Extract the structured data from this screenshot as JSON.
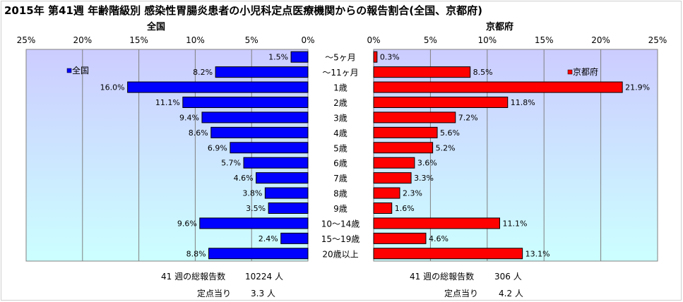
{
  "title": "2015年 第41週 年齢階級別 感染性胃腸炎患者の小児科定点医療機関からの報告割合(全国、京都府)",
  "chart_data": [
    {
      "type": "bar",
      "subtitle": "全国",
      "legend": "全国",
      "legend_position": "top-left",
      "orientation": "horizontal",
      "x_direction": "reversed",
      "xlim": [
        0,
        25
      ],
      "xticks": [
        "25%",
        "20%",
        "15%",
        "10%",
        "5%",
        "0%"
      ],
      "grid": true,
      "color": "#0000ff",
      "categories": [
        "～5ヶ月",
        "～11ヶ月",
        "1歳",
        "2歳",
        "3歳",
        "4歳",
        "5歳",
        "6歳",
        "7歳",
        "8歳",
        "9歳",
        "10～14歳",
        "15～19歳",
        "20歳以上"
      ],
      "values": [
        1.5,
        8.2,
        16.0,
        11.1,
        9.4,
        8.6,
        6.9,
        5.7,
        4.6,
        3.8,
        3.5,
        9.6,
        2.4,
        8.8
      ],
      "labels": [
        "1.5%",
        "8.2%",
        "16.0%",
        "11.1%",
        "9.4%",
        "8.6%",
        "6.9%",
        "5.7%",
        "4.6%",
        "3.8%",
        "3.5%",
        "9.6%",
        "2.4%",
        "8.8%"
      ]
    },
    {
      "type": "bar",
      "subtitle": "京都府",
      "legend": "京都府",
      "legend_position": "top-right",
      "orientation": "horizontal",
      "xlim": [
        0,
        25
      ],
      "xticks": [
        "0%",
        "5%",
        "10%",
        "15%",
        "20%",
        "25%"
      ],
      "grid": true,
      "color": "#ff0000",
      "categories": [
        "～5ヶ月",
        "～11ヶ月",
        "1歳",
        "2歳",
        "3歳",
        "4歳",
        "5歳",
        "6歳",
        "7歳",
        "8歳",
        "9歳",
        "10～14歳",
        "15～19歳",
        "20歳以上"
      ],
      "values": [
        0.3,
        8.5,
        21.9,
        11.8,
        7.2,
        5.6,
        5.2,
        3.6,
        3.3,
        2.3,
        1.6,
        11.1,
        4.6,
        13.1
      ],
      "labels": [
        "0.3%",
        "8.5%",
        "21.9%",
        "11.8%",
        "7.2%",
        "5.6%",
        "5.2%",
        "3.6%",
        "3.3%",
        "2.3%",
        "1.6%",
        "11.1%",
        "4.6%",
        "13.1%"
      ]
    }
  ],
  "footer": {
    "national": {
      "reports_label": "41 週の総報告数",
      "reports_value": "10224 人",
      "per_site_label": "定点当り",
      "per_site_value": "3.3 人"
    },
    "kyoto": {
      "reports_label": "41 週の総報告数",
      "reports_value": "306 人",
      "per_site_label": "定点当り",
      "per_site_value": "4.2 人"
    }
  }
}
